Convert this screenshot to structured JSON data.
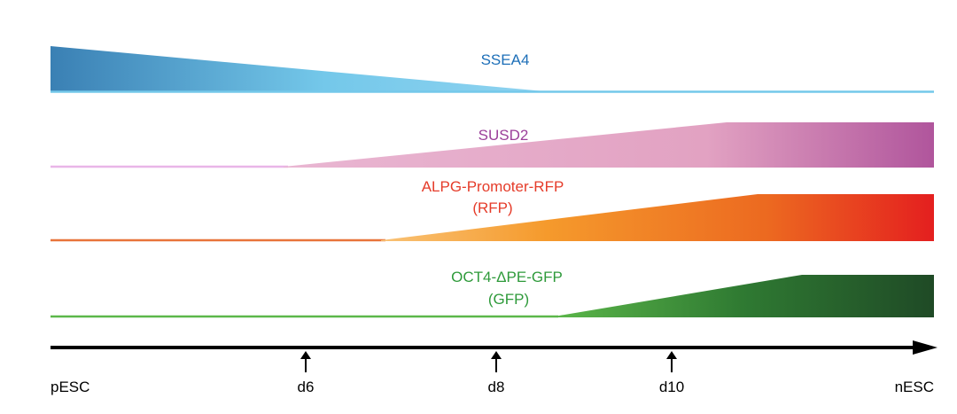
{
  "markers": [
    {
      "id": "ssea4",
      "lines": [
        "SSEA4"
      ],
      "color": "#1d6fb8",
      "trend": "decreasing"
    },
    {
      "id": "susd2",
      "lines": [
        "SUSD2"
      ],
      "color": "#9b3f9a",
      "trend": "increasing"
    },
    {
      "id": "alpg",
      "lines": [
        "ALPG-Promoter-RFP",
        "(RFP)"
      ],
      "color": "#e53c2a",
      "trend": "increasing"
    },
    {
      "id": "oct4",
      "lines": [
        "OCT4-ΔPE-GFP",
        "(GFP)"
      ],
      "color": "#2e9a3a",
      "trend": "increasing"
    }
  ],
  "timeline": {
    "start": "pESC",
    "end": "nESC",
    "ticks": [
      "d6",
      "d8",
      "d10"
    ]
  }
}
